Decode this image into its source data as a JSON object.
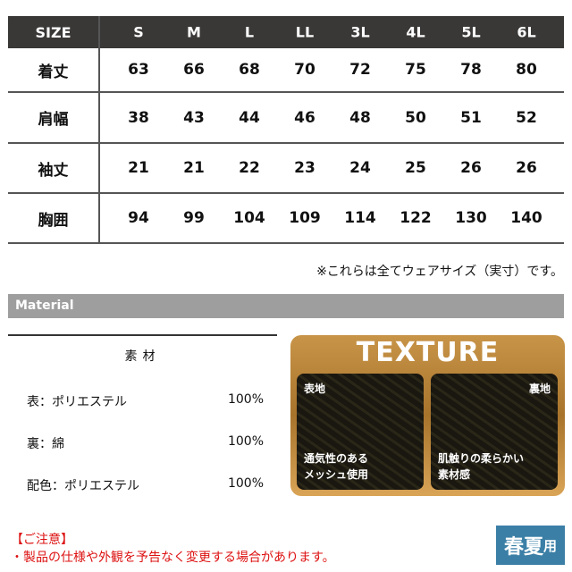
{
  "size_table": {
    "header_label": "SIZE",
    "sizes": [
      "S",
      "M",
      "L",
      "LL",
      "3L",
      "4L",
      "5L",
      "6L"
    ],
    "rows": [
      {
        "label": "着丈",
        "values": [
          "63",
          "66",
          "68",
          "70",
          "72",
          "75",
          "78",
          "80"
        ]
      },
      {
        "label": "肩幅",
        "values": [
          "38",
          "43",
          "44",
          "46",
          "48",
          "50",
          "51",
          "52"
        ]
      },
      {
        "label": "袖丈",
        "values": [
          "21",
          "21",
          "22",
          "23",
          "24",
          "25",
          "26",
          "26"
        ]
      },
      {
        "label": "胸囲",
        "values": [
          "94",
          "99",
          "104",
          "109",
          "114",
          "122",
          "130",
          "140"
        ]
      }
    ],
    "note": "※これらは全てウェアサイズ（実寸）です。"
  },
  "material": {
    "section_title": "Material",
    "header": "素材",
    "rows": [
      {
        "part": "表：ポリエステル",
        "percent": "100%"
      },
      {
        "part": "裏：綿",
        "percent": "100%"
      },
      {
        "part": "配色：ポリエステル",
        "percent": "100%"
      }
    ]
  },
  "texture": {
    "title": "TEXTURE",
    "front": {
      "label": "表地",
      "desc1": "通気性のある",
      "desc2": "メッシュ使用"
    },
    "back": {
      "label": "裏地",
      "desc1": "肌触りの柔らかい",
      "desc2": "素材感"
    }
  },
  "caution": {
    "title": "【ご注意】",
    "text": "・製品の仕様や外観を予告なく変更する場合があります。"
  },
  "season_badge": {
    "main": "春夏",
    "suffix": "用",
    "color": "#3b7fa6"
  }
}
